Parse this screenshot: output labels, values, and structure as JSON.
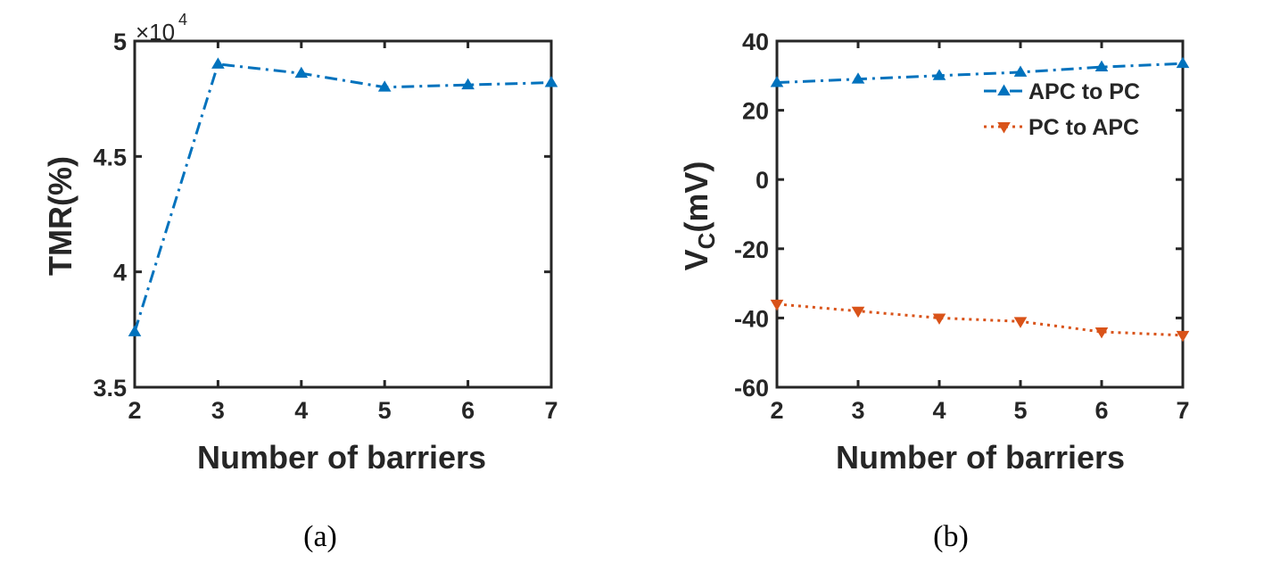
{
  "chart_data": [
    {
      "type": "line",
      "panel_label": "(a)",
      "xlabel": "Number of barriers",
      "ylabel": "TMR(%)",
      "y_exponent_label": "×10",
      "y_exponent_power": "4",
      "x": [
        2,
        3,
        4,
        5,
        6,
        7
      ],
      "xlim": [
        2,
        7
      ],
      "ylim": [
        3.5,
        5
      ],
      "yticks": [
        3.5,
        4,
        4.5,
        5
      ],
      "ytick_labels": [
        "3.5",
        "4",
        "4.5",
        "5"
      ],
      "xtick_labels": [
        "2",
        "3",
        "4",
        "5",
        "6",
        "7"
      ],
      "series": [
        {
          "values": [
            3.74,
            4.9,
            4.86,
            4.8,
            4.81,
            4.82
          ],
          "color": "#0072BD",
          "line_style": "dash-dot",
          "marker": "triangle-up"
        }
      ],
      "grid": false
    },
    {
      "type": "line",
      "panel_label": "(b)",
      "xlabel": "Number of barriers",
      "ylabel_main": "V",
      "ylabel_sub": "C",
      "ylabel_unit": "(mV)",
      "x": [
        2,
        3,
        4,
        5,
        6,
        7
      ],
      "xlim": [
        2,
        7
      ],
      "ylim": [
        -60,
        40
      ],
      "yticks": [
        -60,
        -40,
        -20,
        0,
        20,
        40
      ],
      "ytick_labels": [
        "-60",
        "-40",
        "-20",
        "0",
        "20",
        "40"
      ],
      "xtick_labels": [
        "2",
        "3",
        "4",
        "5",
        "6",
        "7"
      ],
      "series": [
        {
          "name": "APC to PC",
          "values": [
            28,
            29,
            30,
            31,
            32.5,
            33.5
          ],
          "color": "#0072BD",
          "line_style": "dash-dot",
          "marker": "triangle-up"
        },
        {
          "name": "PC to APC",
          "values": [
            -36,
            -38,
            -40,
            -41,
            -44,
            -45
          ],
          "color": "#D95319",
          "line_style": "dotted",
          "marker": "triangle-down"
        }
      ],
      "legend_position": "top-right",
      "grid": false
    }
  ]
}
